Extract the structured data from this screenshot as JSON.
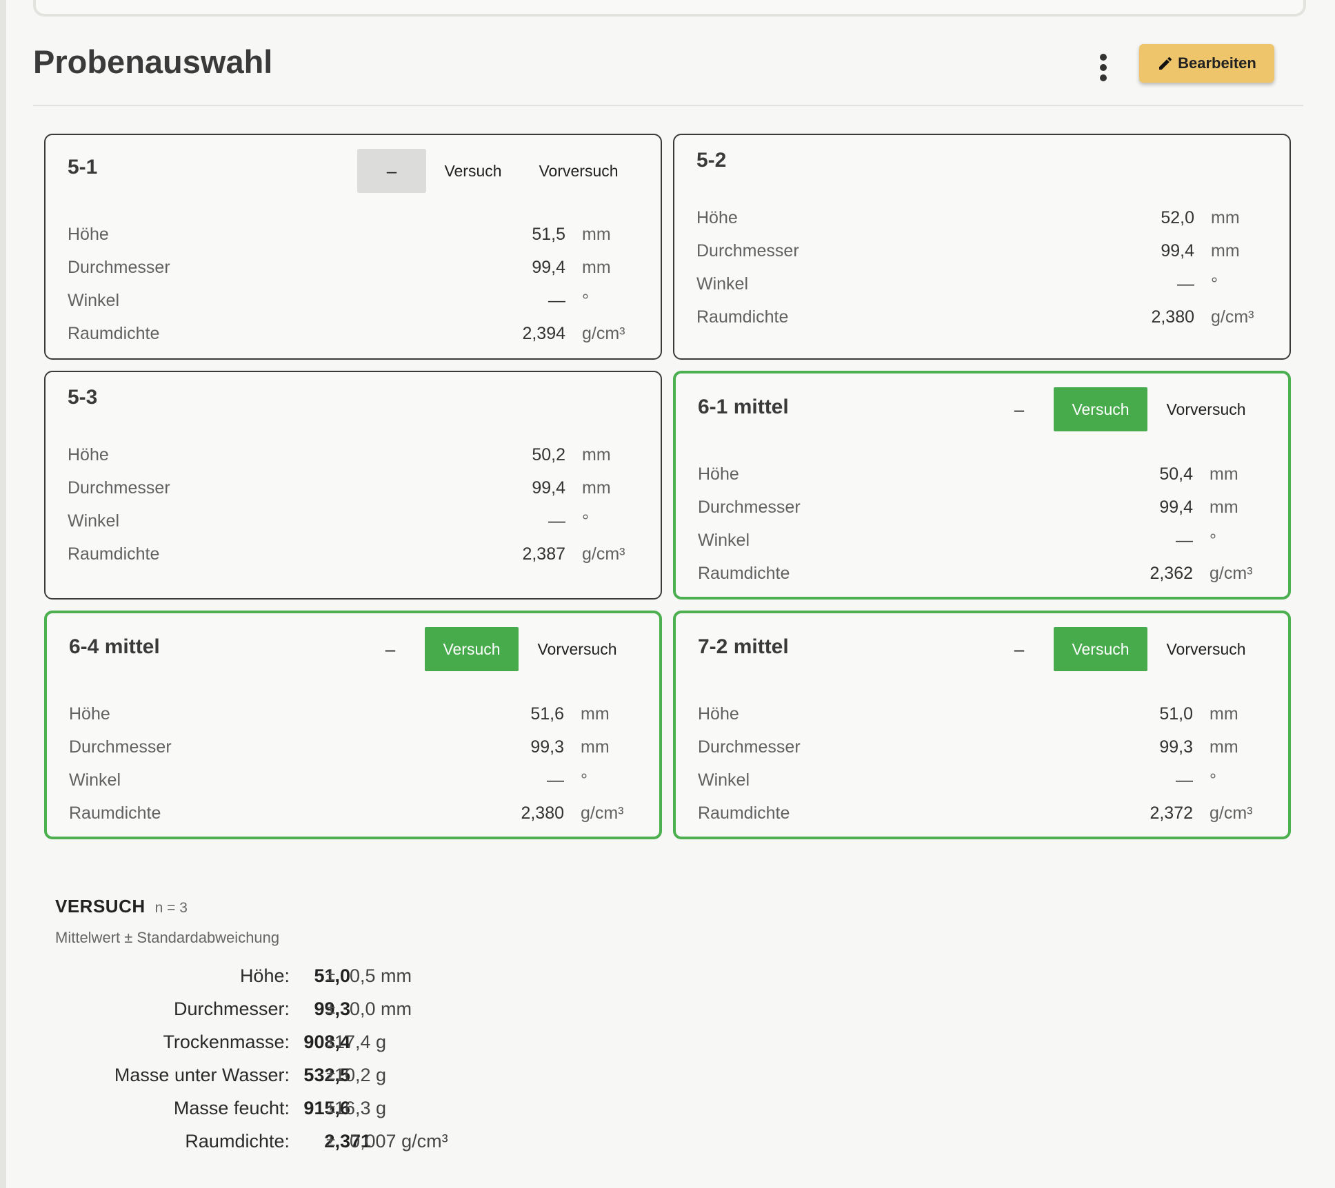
{
  "page": {
    "title": "Probenauswahl"
  },
  "toolbar": {
    "more_icon": "kebab-vertical-icon",
    "edit_icon": "pencil-icon",
    "edit_label": "Bearbeiten"
  },
  "labels": {
    "height": "Höhe",
    "diameter": "Durchmesser",
    "angle": "Winkel",
    "density": "Raumdichte",
    "dash": "–",
    "versuch": "Versuch",
    "vorversuch": "Vorversuch"
  },
  "units": {
    "mm": "mm",
    "deg": "°",
    "density": "g/cm³"
  },
  "samples": [
    {
      "name": "5-1",
      "selection": "none",
      "hoehe": "51,5",
      "durchmesser": "99,4",
      "winkel": "—",
      "raumdichte": "2,394"
    },
    {
      "name": "5-2",
      "selection": null,
      "hoehe": "52,0",
      "durchmesser": "99,4",
      "winkel": "—",
      "raumdichte": "2,380"
    },
    {
      "name": "5-3",
      "selection": null,
      "hoehe": "50,2",
      "durchmesser": "99,4",
      "winkel": "—",
      "raumdichte": "2,387"
    },
    {
      "name": "6-1 mittel",
      "selection": "versuch",
      "hoehe": "50,4",
      "durchmesser": "99,4",
      "winkel": "—",
      "raumdichte": "2,362"
    },
    {
      "name": "6-4 mittel",
      "selection": "versuch",
      "hoehe": "51,6",
      "durchmesser": "99,3",
      "winkel": "—",
      "raumdichte": "2,380"
    },
    {
      "name": "7-2 mittel",
      "selection": "versuch",
      "hoehe": "51,0",
      "durchmesser": "99,3",
      "winkel": "—",
      "raumdichte": "2,372"
    }
  ],
  "summary": {
    "title": "VERSUCH",
    "n_label": "n = 3",
    "subtitle": "Mittelwert ± Standardabweichung",
    "pm": "±",
    "rows": [
      {
        "label": "Höhe:",
        "mean": "51,0",
        "sd": "0,5 mm"
      },
      {
        "label": "Durchmesser:",
        "mean": "99,3",
        "sd": "0,0 mm"
      },
      {
        "label": "Trockenmasse:",
        "mean": "908,4",
        "sd": "17,4 g"
      },
      {
        "label": "Masse unter Wasser:",
        "mean": "532,5",
        "sd": "10,2 g"
      },
      {
        "label": "Masse feucht:",
        "mean": "915,6",
        "sd": "16,3 g"
      },
      {
        "label": "Raumdichte:",
        "mean": "2,371",
        "sd": "0,007 g/cm³"
      }
    ]
  },
  "colors": {
    "accent_green": "#4caf50",
    "edit_button": "#eec56a",
    "text_dark": "#333333"
  }
}
